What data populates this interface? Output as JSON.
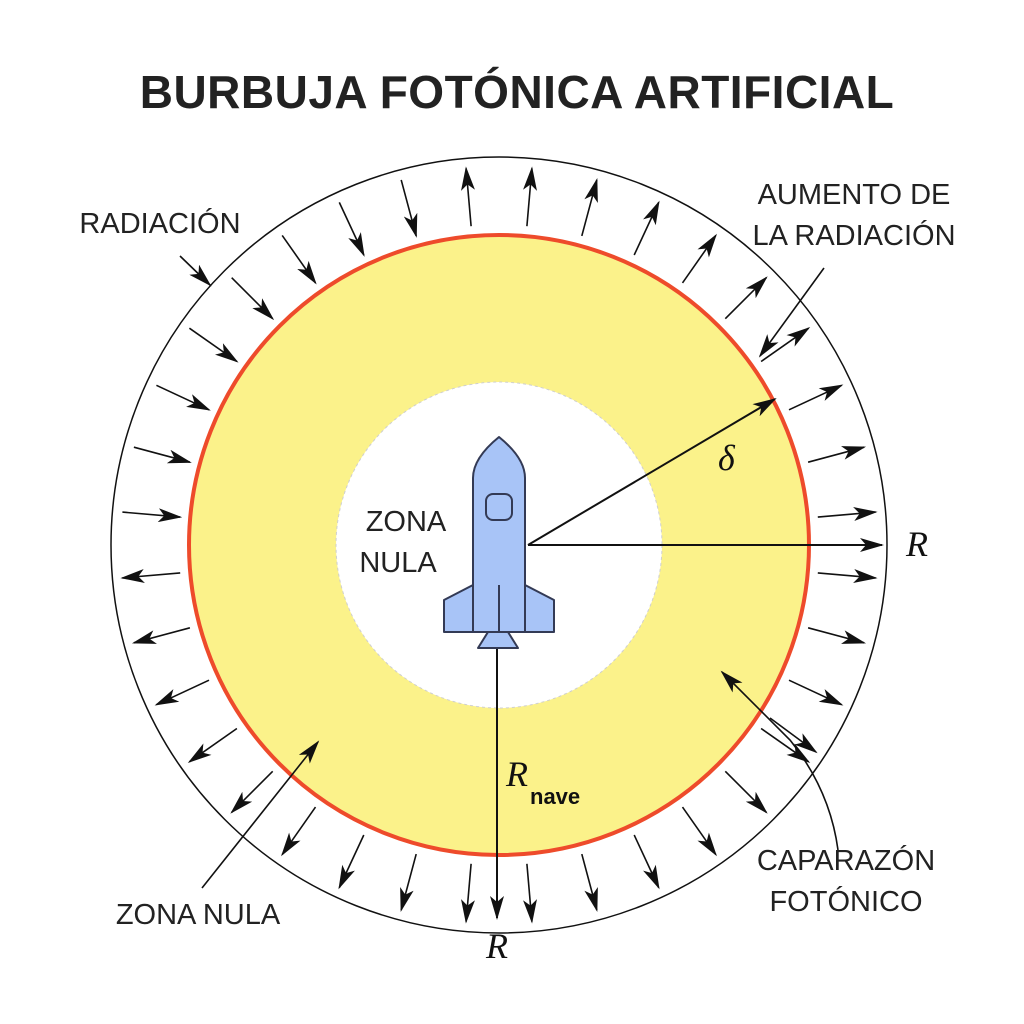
{
  "title": "BURBUJA FOTÓNICA ARTIFICIAL",
  "labels": {
    "radiacion": "RADIACIÓN",
    "aumento_line1": "AUMENTO DE",
    "aumento_line2": "LA RADIACIÓN",
    "zona_nula_inner_line1": "ZONA",
    "zona_nula_inner_line2": "NULA",
    "zona_nula_outer": "ZONA NULA",
    "caparazon_line1": "CAPARAZÓN",
    "caparazon_line2": "FOTÓNICO",
    "delta": "δ",
    "r_right": "R",
    "r_bottom": "R",
    "r_nave_main": "R",
    "r_nave_sub": "nave"
  },
  "colors": {
    "shell_fill": "#fbf28a",
    "shell_edge": "#ee4b2b",
    "rocket_fill": "#a8c4f7",
    "rocket_stroke": "#333a55",
    "arrow": "#111111"
  },
  "icons": {
    "rocket": "rocket-icon"
  }
}
